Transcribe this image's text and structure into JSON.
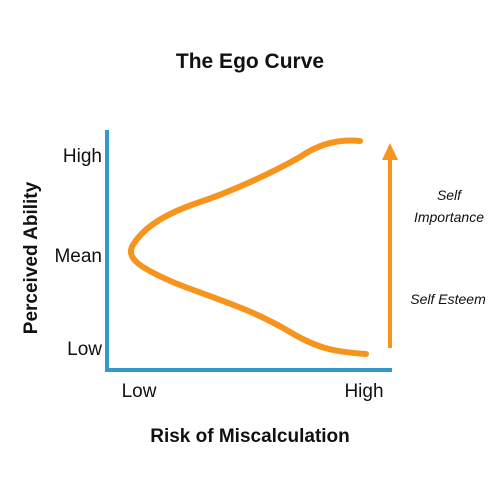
{
  "title": "The Ego Curve",
  "axes": {
    "y_label": "Perceived Ability",
    "x_label": "Risk of Miscalculation",
    "y_ticks": [
      "High",
      "Mean",
      "Low"
    ],
    "x_ticks": [
      "Low",
      "High"
    ]
  },
  "annotations": {
    "self_importance": [
      "Self",
      "Importance"
    ],
    "self_esteem": "Self Esteem"
  },
  "colors": {
    "axis": "#3399cc",
    "curve": "#f7941d",
    "text": "#111111"
  }
}
